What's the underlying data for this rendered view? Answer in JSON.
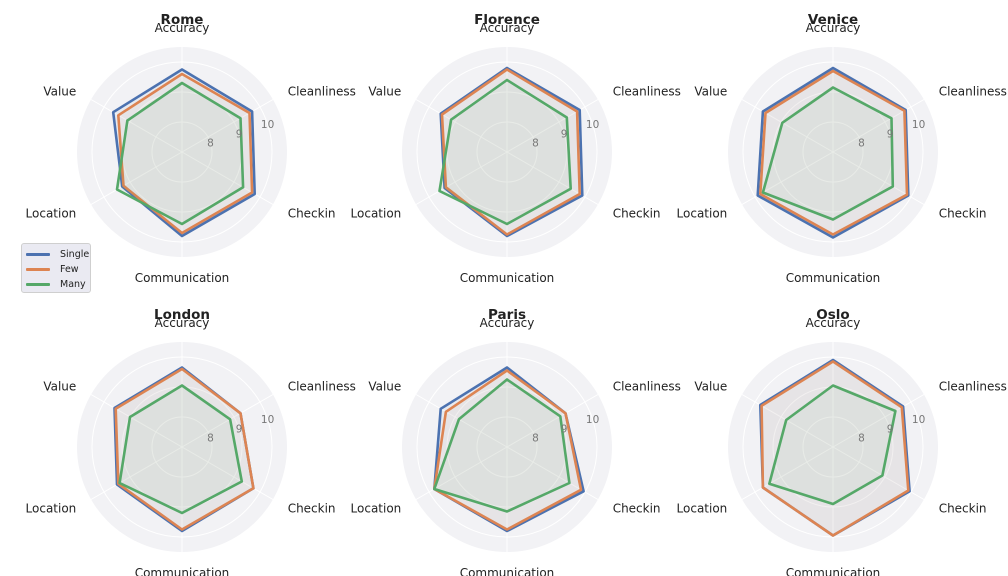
{
  "chart_data": {
    "type": "radar",
    "axes": [
      "Accuracy",
      "Cleanliness",
      "Checkin",
      "Communication",
      "Location",
      "Value"
    ],
    "rticks": [
      {
        "value": 8,
        "label": "8"
      },
      {
        "value": 9,
        "label": "9"
      },
      {
        "value": 10,
        "label": "10"
      }
    ],
    "rlim": [
      7,
      10.5
    ],
    "series_styles": [
      {
        "name": "Single",
        "color": "#4c72b0"
      },
      {
        "name": "Few",
        "color": "#dd8452"
      },
      {
        "name": "Many",
        "color": "#55a868"
      }
    ],
    "legend": {
      "position": "left",
      "entries": [
        "Single",
        "Few",
        "Many"
      ]
    },
    "charts": [
      {
        "title": "Rome",
        "series": [
          {
            "name": "Single",
            "values": [
              9.75,
              9.7,
              9.8,
              9.8,
              9.3,
              9.65
            ]
          },
          {
            "name": "Few",
            "values": [
              9.6,
              9.6,
              9.7,
              9.7,
              9.25,
              9.45
            ]
          },
          {
            "name": "Many",
            "values": [
              9.3,
              9.25,
              9.35,
              9.4,
              9.5,
              9.1
            ]
          }
        ]
      },
      {
        "title": "Florence",
        "series": [
          {
            "name": "Single",
            "values": [
              9.8,
              9.8,
              9.9,
              9.8,
              9.4,
              9.55
            ]
          },
          {
            "name": "Few",
            "values": [
              9.75,
              9.7,
              9.8,
              9.75,
              9.35,
              9.5
            ]
          },
          {
            "name": "Many",
            "values": [
              9.4,
              9.3,
              9.45,
              9.4,
              9.6,
              9.15
            ]
          }
        ]
      },
      {
        "title": "Venice",
        "series": [
          {
            "name": "Single",
            "values": [
              9.8,
              9.8,
              9.9,
              9.85,
              9.9,
              9.7
            ]
          },
          {
            "name": "Few",
            "values": [
              9.7,
              9.75,
              9.85,
              9.75,
              9.8,
              9.6
            ]
          },
          {
            "name": "Many",
            "values": [
              9.15,
              9.25,
              9.3,
              9.25,
              9.7,
              8.95
            ]
          }
        ]
      },
      {
        "title": "London",
        "series": [
          {
            "name": "Single",
            "values": [
              9.65,
              9.25,
              9.75,
              9.8,
              9.5,
              9.6
            ]
          },
          {
            "name": "Few",
            "values": [
              9.6,
              9.25,
              9.75,
              9.75,
              9.45,
              9.55
            ]
          },
          {
            "name": "Many",
            "values": [
              9.05,
              8.85,
              9.3,
              9.2,
              9.4,
              9.0
            ]
          }
        ]
      },
      {
        "title": "Paris",
        "series": [
          {
            "name": "Single",
            "values": [
              9.65,
              9.25,
              9.95,
              9.8,
              9.8,
              9.55
            ]
          },
          {
            "name": "Few",
            "values": [
              9.55,
              9.25,
              9.85,
              9.75,
              9.8,
              9.35
            ]
          },
          {
            "name": "Many",
            "values": [
              9.25,
              9.05,
              9.4,
              9.15,
              9.8,
              8.85
            ]
          }
        ]
      },
      {
        "title": "Oslo",
        "series": [
          {
            "name": "Single",
            "values": [
              9.9,
              9.7,
              9.95,
              9.95,
              9.7,
              9.8
            ]
          },
          {
            "name": "Few",
            "values": [
              9.85,
              9.65,
              9.9,
              9.95,
              9.7,
              9.75
            ]
          },
          {
            "name": "Many",
            "values": [
              9.05,
              9.4,
              8.9,
              8.9,
              9.45,
              8.8
            ]
          }
        ]
      }
    ]
  }
}
